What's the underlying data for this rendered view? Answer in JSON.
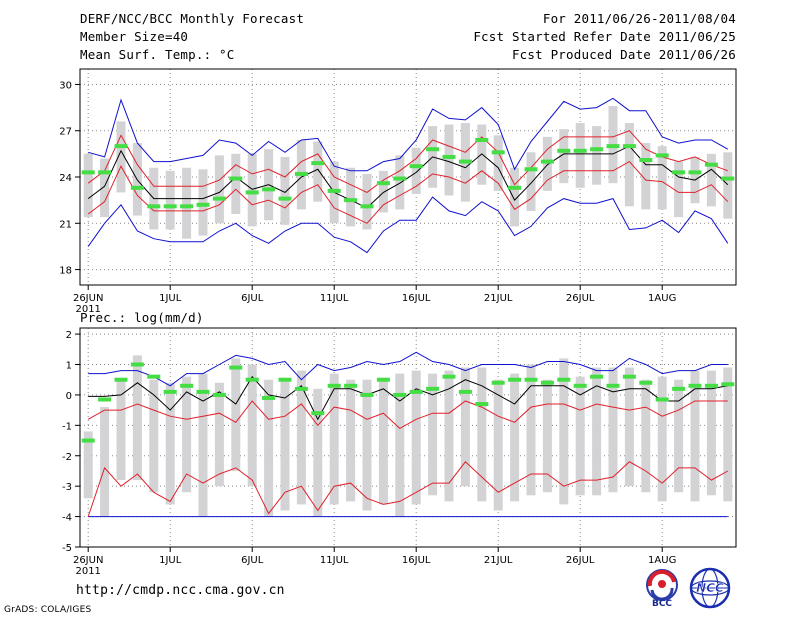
{
  "header": {
    "title": "DERF/NCC/BCC Monthly Forecast",
    "member_size": "Member Size=40",
    "variable": "Mean Surf. Temp.: °C",
    "period": "For 2011/06/26-2011/08/04",
    "start_date": "Fcst Started Refer Date 2011/06/25",
    "produced_date": "Fcst Produced Date 2011/06/26"
  },
  "precip_label": "Prec.: log(mm/d)",
  "footer": {
    "url": "http://cmdp.ncc.cma.gov.cn",
    "grads": "GrADS: COLA/IGES",
    "logo_bcc": "BCC",
    "logo_ncc": "NCC"
  },
  "colors": {
    "ensemble_mean": "#000000",
    "std_band": "#e0202a",
    "extreme": "#1010d0",
    "box": "#d3d3d5",
    "climatology": "#44dd44",
    "grid": "#888888"
  },
  "chart_data": [
    {
      "type": "box-line",
      "name": "temperature",
      "title": "Mean Surf. Temp.: °C",
      "ylim": [
        17,
        31
      ],
      "yticks": [
        18,
        21,
        24,
        27,
        30
      ],
      "xlim": [
        0.5,
        40.5
      ],
      "x_tick_positions": [
        1,
        6,
        11,
        16,
        21,
        26,
        31,
        36
      ],
      "x_tick_labels": [
        "26JUN",
        "1JUL",
        "6JUL",
        "11JUL",
        "16JUL",
        "21JUL",
        "26JUL",
        "1AUG"
      ],
      "x_year": "2011",
      "grid": true,
      "days": 40,
      "mean": [
        22.6,
        23.4,
        25.7,
        23.8,
        22.6,
        22.6,
        22.6,
        22.6,
        23.0,
        24.0,
        23.2,
        23.5,
        23.0,
        24.0,
        24.5,
        23.0,
        22.5,
        22.0,
        23.0,
        23.6,
        24.3,
        25.3,
        25.0,
        24.6,
        25.5,
        24.6,
        22.5,
        23.6,
        24.8,
        25.5,
        25.5,
        25.5,
        25.5,
        26.0,
        24.8,
        24.8,
        24.0,
        23.8,
        24.5,
        23.5
      ],
      "upper_std": [
        23.6,
        24.4,
        26.7,
        24.8,
        23.4,
        23.4,
        23.4,
        23.4,
        23.8,
        24.8,
        24.2,
        24.5,
        24.0,
        25.0,
        25.5,
        24.0,
        23.5,
        23.0,
        23.8,
        24.4,
        25.2,
        26.4,
        26.0,
        25.6,
        26.6,
        25.6,
        23.5,
        24.6,
        25.8,
        26.6,
        26.6,
        26.6,
        26.6,
        27.0,
        25.8,
        25.3,
        25.0,
        25.3,
        24.8,
        24.4
      ],
      "lower_std": [
        21.6,
        22.4,
        24.7,
        22.8,
        21.8,
        21.8,
        21.8,
        21.8,
        22.2,
        23.2,
        22.2,
        22.5,
        22.0,
        23.0,
        23.5,
        22.0,
        21.5,
        21.0,
        22.2,
        22.8,
        23.4,
        24.2,
        24.0,
        23.6,
        24.4,
        23.6,
        21.9,
        22.6,
        23.8,
        24.4,
        24.4,
        24.4,
        24.4,
        25.0,
        23.8,
        23.7,
        23.0,
        23.0,
        23.5,
        22.4
      ],
      "max": [
        25.6,
        25.3,
        29.0,
        26.2,
        25.0,
        25.0,
        25.2,
        25.4,
        26.4,
        26.2,
        25.4,
        26.3,
        25.6,
        26.4,
        26.5,
        24.7,
        24.4,
        24.4,
        25.0,
        25.2,
        26.4,
        28.4,
        27.8,
        27.7,
        28.5,
        27.4,
        24.5,
        26.3,
        27.6,
        28.9,
        28.4,
        28.5,
        29.1,
        28.3,
        28.3,
        26.6,
        26.2,
        26.4,
        26.4,
        25.8
      ],
      "min": [
        19.5,
        21.0,
        22.2,
        20.5,
        20.0,
        19.8,
        19.8,
        19.8,
        20.5,
        21.0,
        20.2,
        19.7,
        20.5,
        21.0,
        21.0,
        20.1,
        19.8,
        19.1,
        20.5,
        21.2,
        21.2,
        22.7,
        21.8,
        21.5,
        22.4,
        21.8,
        20.2,
        20.8,
        22.0,
        22.6,
        22.3,
        22.3,
        22.6,
        20.6,
        20.7,
        21.2,
        20.4,
        21.8,
        21.3,
        19.7
      ],
      "box_high": [
        25.5,
        25.2,
        27.6,
        26.2,
        24.6,
        24.4,
        24.6,
        24.5,
        25.4,
        25.5,
        25.5,
        25.8,
        25.3,
        26.4,
        26.3,
        25.0,
        24.6,
        24.2,
        24.4,
        25.4,
        25.9,
        27.3,
        27.4,
        27.5,
        27.4,
        26.7,
        24.6,
        25.6,
        26.6,
        27.1,
        27.5,
        27.3,
        28.6,
        27.5,
        26.2,
        26.0,
        25.0,
        25.3,
        25.5,
        25.6
      ],
      "box_low": [
        21.4,
        21.4,
        23.0,
        21.5,
        20.6,
        20.6,
        20.0,
        20.2,
        21.0,
        21.6,
        20.8,
        21.2,
        20.9,
        21.9,
        22.4,
        21.0,
        20.8,
        20.6,
        21.7,
        21.9,
        22.9,
        23.3,
        22.8,
        22.4,
        23.5,
        23.1,
        20.8,
        21.8,
        23.1,
        23.6,
        23.3,
        23.5,
        23.6,
        22.1,
        21.9,
        21.9,
        21.4,
        22.3,
        22.1,
        21.3
      ],
      "climatology": [
        24.3,
        24.3,
        26.0,
        23.3,
        22.1,
        22.1,
        22.1,
        22.2,
        22.6,
        23.9,
        23.0,
        23.2,
        22.6,
        24.2,
        24.9,
        23.1,
        22.5,
        22.1,
        23.6,
        23.9,
        24.7,
        25.8,
        25.3,
        25.0,
        26.4,
        25.6,
        23.3,
        24.5,
        25.0,
        25.7,
        25.7,
        25.8,
        26.0,
        26.0,
        25.1,
        25.4,
        24.3,
        24.3,
        24.8,
        23.9
      ]
    },
    {
      "type": "box-line",
      "name": "precipitation",
      "title": "Prec.: log(mm/d)",
      "ylim": [
        -5,
        2.2
      ],
      "yticks": [
        -5,
        -4,
        -3,
        -2,
        -1,
        0,
        1,
        2
      ],
      "xlim": [
        0.5,
        40.5
      ],
      "x_tick_positions": [
        1,
        6,
        11,
        16,
        21,
        26,
        31,
        36
      ],
      "x_tick_labels": [
        "26JUN",
        "1JUL",
        "6JUL",
        "11JUL",
        "16JUL",
        "21JUL",
        "26JUL",
        "1AUG"
      ],
      "x_year": "2011",
      "grid": true,
      "days": 40,
      "mean": [
        -0.05,
        -0.05,
        0.0,
        0.4,
        0.0,
        -0.5,
        0.1,
        -0.2,
        0.1,
        -0.3,
        0.6,
        0.0,
        -0.1,
        0.3,
        -0.8,
        0.2,
        0.2,
        0.0,
        0.2,
        -0.2,
        0.2,
        0.0,
        0.2,
        0.5,
        0.3,
        0.0,
        -0.3,
        0.3,
        0.3,
        0.3,
        0.0,
        0.3,
        0.1,
        0.2,
        0.2,
        -0.2,
        -0.2,
        0.2,
        0.2,
        0.3
      ],
      "upper_std": [
        -0.8,
        -0.5,
        -0.5,
        -0.3,
        -0.5,
        -0.7,
        -0.8,
        -0.7,
        -0.6,
        -0.9,
        -0.2,
        -0.8,
        -0.7,
        -0.3,
        -1.0,
        -0.4,
        -0.5,
        -0.8,
        -0.6,
        -1.1,
        -0.8,
        -0.6,
        -0.6,
        -0.2,
        -0.4,
        -0.7,
        -0.9,
        -0.4,
        -0.3,
        -0.3,
        -0.5,
        -0.3,
        -0.4,
        -0.5,
        -0.4,
        -0.7,
        -0.5,
        -0.2,
        -0.2,
        -0.2
      ],
      "lower_std": [
        -4.0,
        -2.4,
        -3.0,
        -2.6,
        -3.2,
        -3.5,
        -2.6,
        -2.9,
        -2.6,
        -2.4,
        -2.8,
        -3.9,
        -3.2,
        -3.0,
        -3.8,
        -3.0,
        -2.9,
        -3.4,
        -3.6,
        -3.5,
        -3.2,
        -2.9,
        -2.9,
        -2.2,
        -2.7,
        -3.2,
        -2.9,
        -2.6,
        -2.6,
        -3.0,
        -2.8,
        -2.8,
        -2.7,
        -2.2,
        -2.5,
        -2.9,
        -2.4,
        -2.4,
        -2.8,
        -2.5
      ],
      "max": [
        0.7,
        0.7,
        0.8,
        0.8,
        0.6,
        0.3,
        0.7,
        0.7,
        1.0,
        1.3,
        1.2,
        1.0,
        1.1,
        0.5,
        1.0,
        0.8,
        0.9,
        1.1,
        1.0,
        1.1,
        1.4,
        1.1,
        1.0,
        0.8,
        1.0,
        1.0,
        1.0,
        0.9,
        1.1,
        1.1,
        1.0,
        0.8,
        0.8,
        1.2,
        1.0,
        0.7,
        0.8,
        0.8,
        1.0,
        1.0
      ],
      "min": [
        -4.0,
        -4.0,
        -4.0,
        -4.0,
        -4.0,
        -4.0,
        -4.0,
        -4.0,
        -4.0,
        -4.0,
        -4.0,
        -4.0,
        -4.0,
        -4.0,
        -4.0,
        -4.0,
        -4.0,
        -4.0,
        -4.0,
        -4.0,
        -4.0,
        -4.0,
        -4.0,
        -4.0,
        -4.0,
        -4.0,
        -4.0,
        -4.0,
        -4.0,
        -4.0,
        -4.0,
        -4.0,
        -4.0,
        -4.0,
        -4.0,
        -4.0,
        -4.0,
        -4.0,
        -4.0,
        -4.0
      ],
      "box_high": [
        -1.2,
        -0.4,
        0.5,
        1.3,
        0.5,
        0.4,
        0.6,
        0.7,
        0.4,
        1.2,
        1.0,
        0.5,
        0.5,
        0.8,
        0.2,
        0.7,
        0.5,
        0.5,
        0.5,
        0.7,
        0.8,
        0.7,
        0.8,
        0.9,
        0.9,
        0.5,
        0.7,
        1.0,
        0.5,
        1.2,
        0.6,
        0.9,
        0.9,
        0.9,
        0.5,
        0.6,
        0.5,
        0.8,
        0.8,
        0.9
      ],
      "box_low": [
        -3.4,
        -4.0,
        -2.8,
        -2.8,
        -3.2,
        -3.6,
        -3.2,
        -4.0,
        -3.0,
        -2.5,
        -3.0,
        -4.0,
        -3.8,
        -3.6,
        -4.0,
        -3.6,
        -3.5,
        -3.8,
        -3.6,
        -4.0,
        -3.6,
        -3.3,
        -3.5,
        -3.0,
        -3.5,
        -3.8,
        -3.5,
        -3.3,
        -3.2,
        -3.6,
        -3.3,
        -3.3,
        -3.2,
        -3.0,
        -3.2,
        -3.5,
        -3.2,
        -3.5,
        -3.3,
        -3.5
      ],
      "climatology": [
        -1.5,
        -0.15,
        0.5,
        1.0,
        0.6,
        0.1,
        0.3,
        0.1,
        0.0,
        0.9,
        0.5,
        -0.1,
        0.5,
        0.2,
        -0.6,
        0.3,
        0.3,
        0.0,
        0.5,
        0.0,
        0.1,
        0.2,
        0.6,
        0.1,
        -0.3,
        0.4,
        0.5,
        0.5,
        0.4,
        0.5,
        0.3,
        0.6,
        0.3,
        0.6,
        0.4,
        -0.15,
        0.2,
        0.3,
        0.3,
        0.35
      ]
    }
  ]
}
